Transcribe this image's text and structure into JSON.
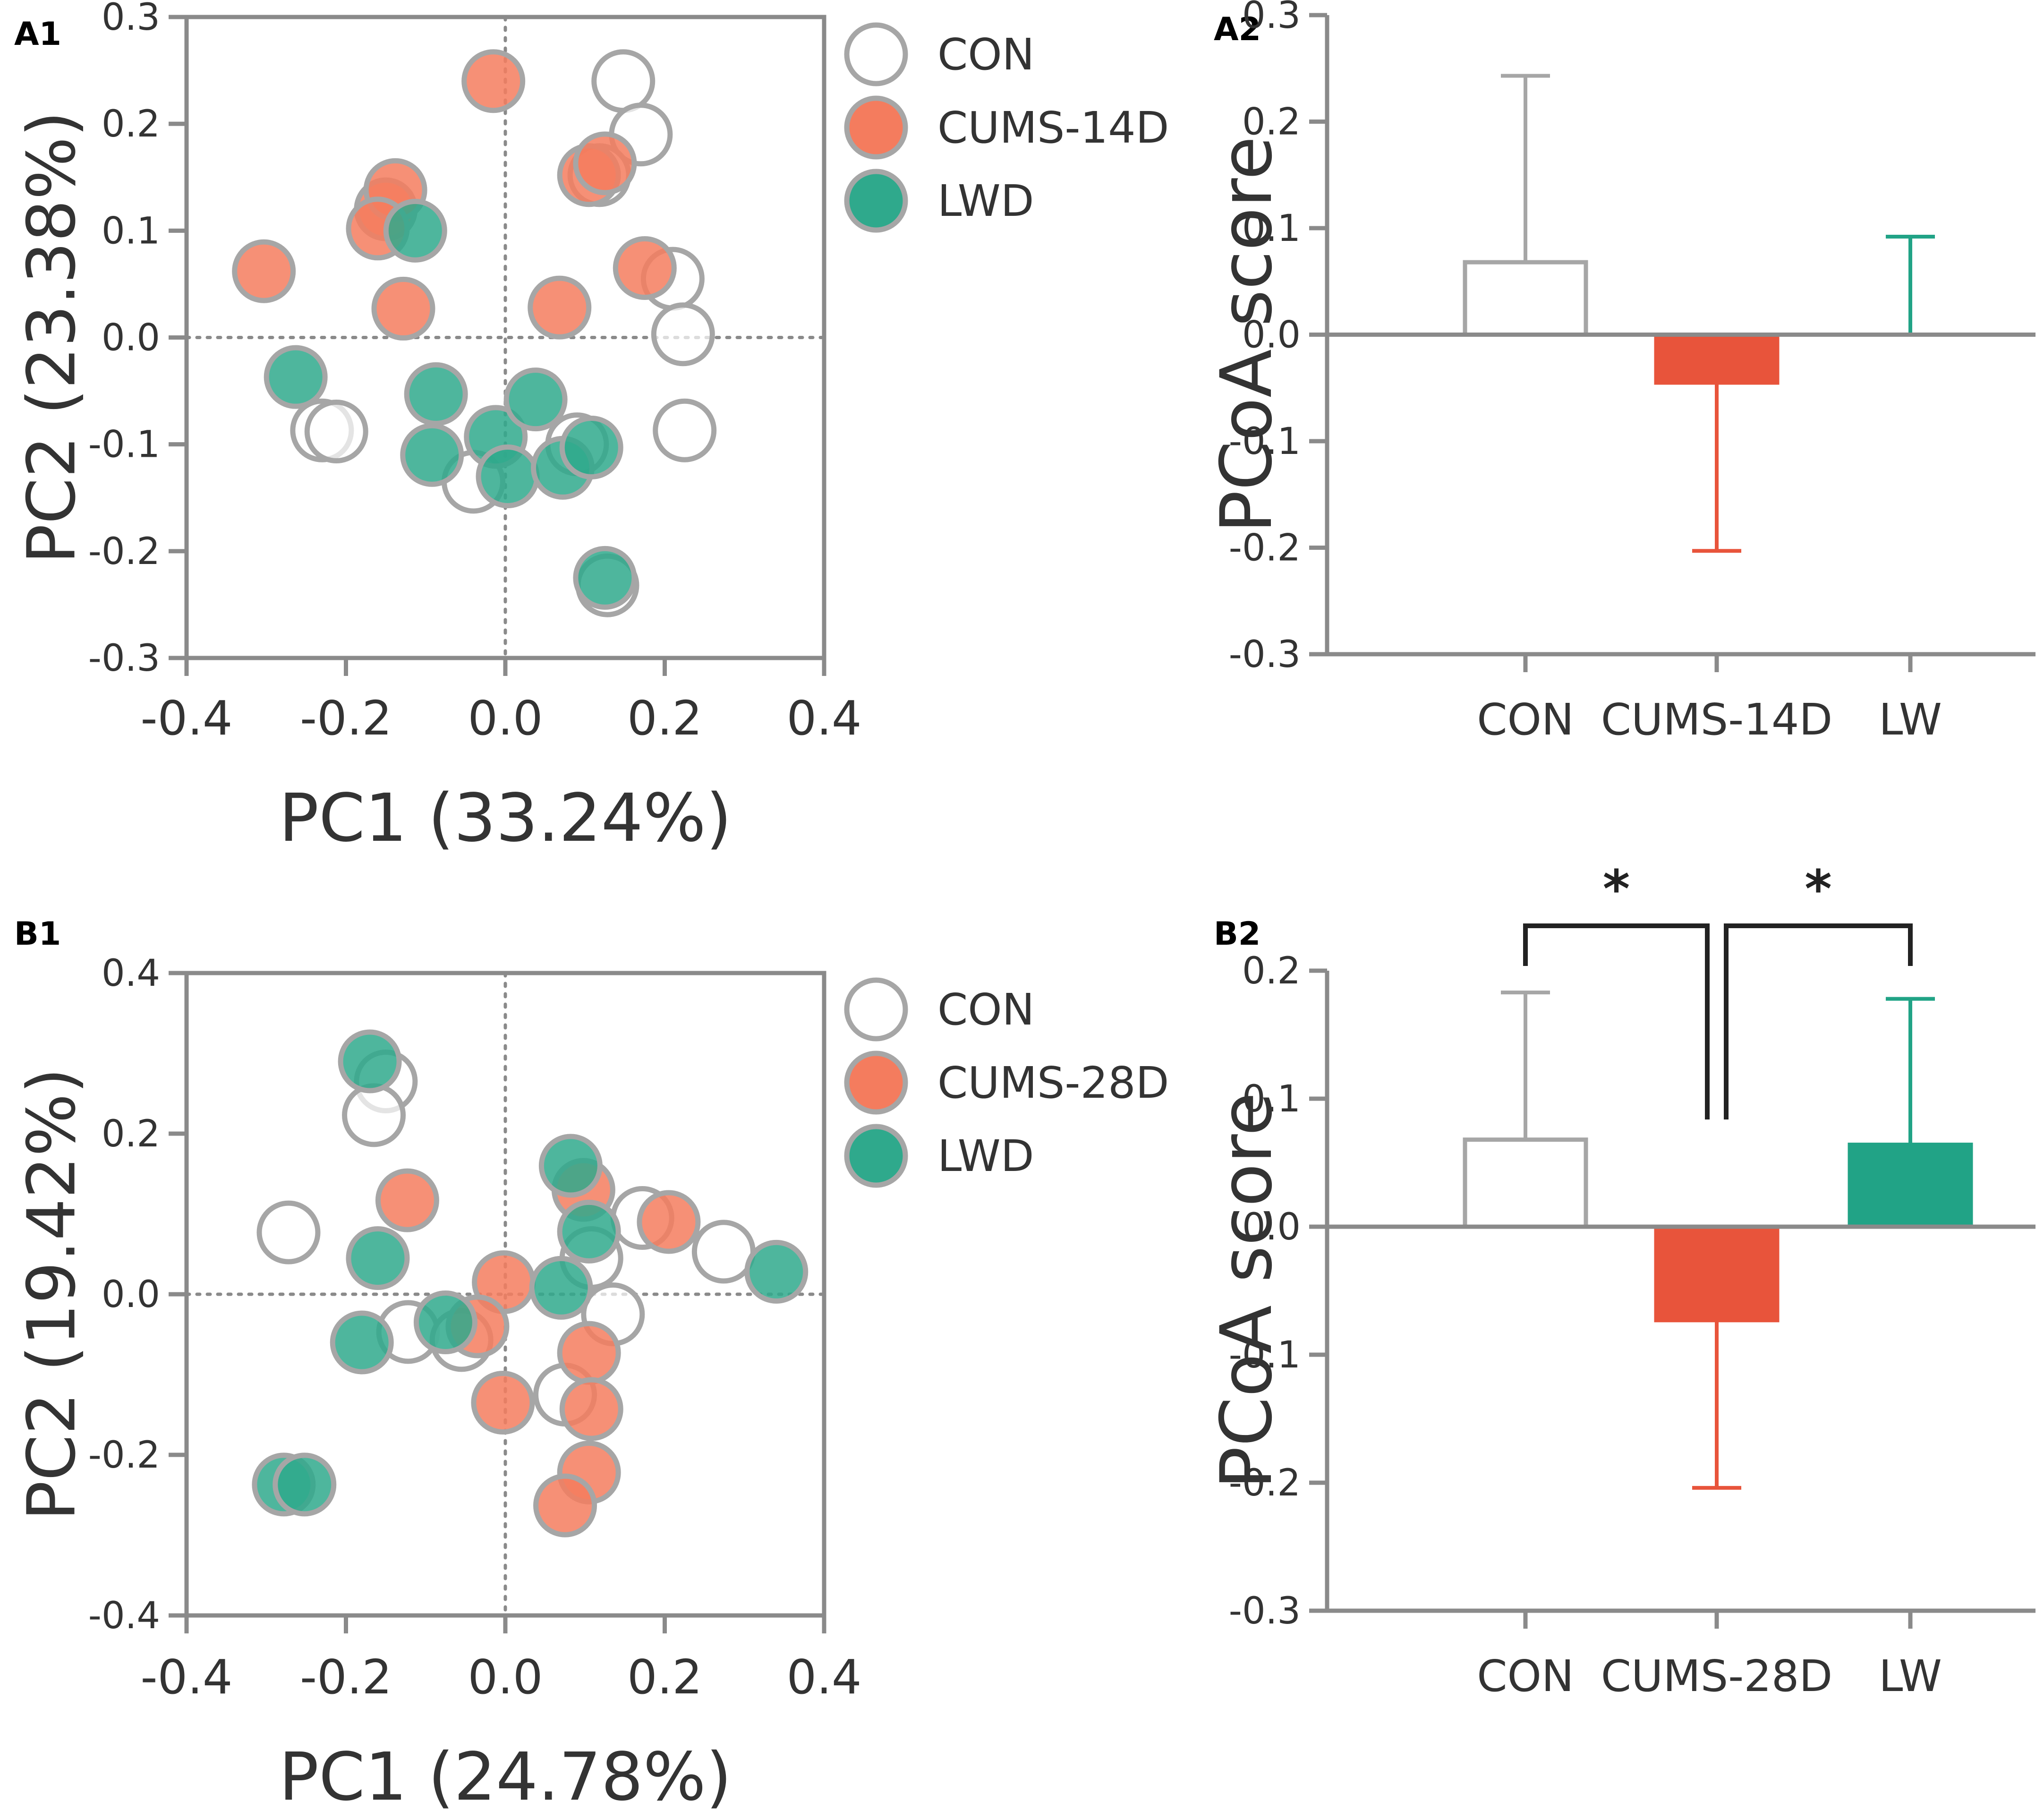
{
  "colors": {
    "axis": "#8a8a8a",
    "con_stroke": "#a6a6a6",
    "con_fill": "#ffffff",
    "cums": "#f47c5e",
    "cums_bar": "#e8543b",
    "lwd": "#2fa98c",
    "lwd_bar": "#21a386",
    "bracket": "#222222",
    "text": "#333333"
  },
  "chart_data": [
    {
      "panel_label": "A1",
      "type": "scatter",
      "xlabel": "PC1 (33.24%)",
      "ylabel": "PC2 (23.38%)",
      "xlim": [
        -0.4,
        0.4
      ],
      "ylim": [
        -0.3,
        0.3
      ],
      "xticks": [
        "-0.4",
        "-0.2",
        "0.0",
        "0.2",
        "0.4"
      ],
      "yticks": [
        "-0.3",
        "-0.2",
        "-0.1",
        "0.0",
        "0.1",
        "0.2",
        "0.3"
      ],
      "legend": [
        "CON",
        "CUMS-14D",
        "LWD"
      ],
      "series": [
        {
          "name": "CON",
          "points": [
            [
              0.148,
              0.24
            ],
            [
              0.17,
              0.19
            ],
            [
              0.21,
              0.055
            ],
            [
              0.223,
              0.003
            ],
            [
              0.225,
              -0.087
            ],
            [
              -0.23,
              -0.087
            ],
            [
              -0.212,
              -0.088
            ],
            [
              -0.04,
              -0.135
            ],
            [
              0.09,
              -0.1
            ],
            [
              0.128,
              -0.232
            ],
            [
              0.118,
              0.152
            ]
          ]
        },
        {
          "name": "CUMS-14D",
          "points": [
            [
              -0.015,
              0.24
            ],
            [
              0.105,
              0.152
            ],
            [
              0.125,
              0.163
            ],
            [
              -0.15,
              0.12
            ],
            [
              -0.138,
              0.138
            ],
            [
              -0.16,
              0.102
            ],
            [
              -0.303,
              0.062
            ],
            [
              -0.128,
              0.027
            ],
            [
              0.068,
              0.028
            ],
            [
              0.175,
              0.065
            ]
          ]
        },
        {
          "name": "LWD",
          "points": [
            [
              -0.263,
              -0.037
            ],
            [
              -0.113,
              0.1
            ],
            [
              -0.087,
              -0.053
            ],
            [
              -0.092,
              -0.11
            ],
            [
              -0.012,
              -0.093
            ],
            [
              0.003,
              -0.13
            ],
            [
              0.038,
              -0.058
            ],
            [
              0.072,
              -0.122
            ],
            [
              0.108,
              -0.103
            ],
            [
              0.125,
              -0.225
            ]
          ]
        }
      ]
    },
    {
      "panel_label": "A2",
      "type": "bar",
      "ylabel": "PCoA score",
      "ylim": [
        -0.3,
        0.3
      ],
      "yticks": [
        "-0.3",
        "-0.2",
        "-0.1",
        "0.0",
        "0.1",
        "0.2",
        "0.3"
      ],
      "categories": [
        "CON",
        "CUMS-14D",
        "LW"
      ],
      "values": [
        0.068,
        -0.045,
        0.0
      ],
      "errors": [
        0.175,
        0.158,
        0.092
      ],
      "significance": []
    },
    {
      "panel_label": "B1",
      "type": "scatter",
      "xlabel": "PC1 (24.78%)",
      "ylabel": "PC2 (19.42%)",
      "xlim": [
        -0.4,
        0.4
      ],
      "ylim": [
        -0.4,
        0.4
      ],
      "xticks": [
        "-0.4",
        "-0.2",
        "0.0",
        "0.2",
        "0.4"
      ],
      "yticks": [
        "-0.4",
        "-0.2",
        "0.0",
        "0.2",
        "0.4"
      ],
      "legend": [
        "CON",
        "CUMS-28D",
        "LWD"
      ],
      "series": [
        {
          "name": "CON",
          "points": [
            [
              -0.15,
              0.265
            ],
            [
              -0.165,
              0.223
            ],
            [
              -0.272,
              0.077
            ],
            [
              0.172,
              0.095
            ],
            [
              0.274,
              0.053
            ],
            [
              0.108,
              0.045
            ],
            [
              0.135,
              -0.025
            ],
            [
              -0.122,
              -0.047
            ],
            [
              -0.055,
              -0.057
            ],
            [
              0.075,
              -0.125
            ]
          ]
        },
        {
          "name": "CUMS-28D",
          "points": [
            [
              -0.123,
              0.117
            ],
            [
              0.098,
              0.13
            ],
            [
              0.205,
              0.09
            ],
            [
              -0.002,
              0.015
            ],
            [
              -0.035,
              -0.04
            ],
            [
              0.105,
              -0.073
            ],
            [
              0.108,
              -0.143
            ],
            [
              -0.003,
              -0.135
            ],
            [
              0.105,
              -0.222
            ],
            [
              0.075,
              -0.263
            ]
          ]
        },
        {
          "name": "LWD",
          "points": [
            [
              -0.17,
              0.29
            ],
            [
              0.082,
              0.16
            ],
            [
              0.105,
              0.078
            ],
            [
              -0.16,
              0.045
            ],
            [
              0.07,
              0.008
            ],
            [
              0.34,
              0.028
            ],
            [
              -0.075,
              -0.035
            ],
            [
              -0.18,
              -0.06
            ],
            [
              -0.278,
              -0.237
            ],
            [
              -0.252,
              -0.237
            ]
          ]
        }
      ]
    },
    {
      "panel_label": "B2",
      "type": "bar",
      "ylabel": "PCoA score",
      "ylim": [
        -0.3,
        0.2
      ],
      "yticks": [
        "-0.3",
        "-0.2",
        "-0.1",
        "0.0",
        "0.1",
        "0.2"
      ],
      "categories": [
        "CON",
        "CUMS-28D",
        "LW"
      ],
      "values": [
        0.068,
        -0.073,
        0.064
      ],
      "errors": [
        0.115,
        0.131,
        0.114
      ],
      "significance": [
        {
          "from": 0,
          "to": 1,
          "label": "*"
        },
        {
          "from": 1,
          "to": 2,
          "label": "*"
        }
      ]
    }
  ]
}
